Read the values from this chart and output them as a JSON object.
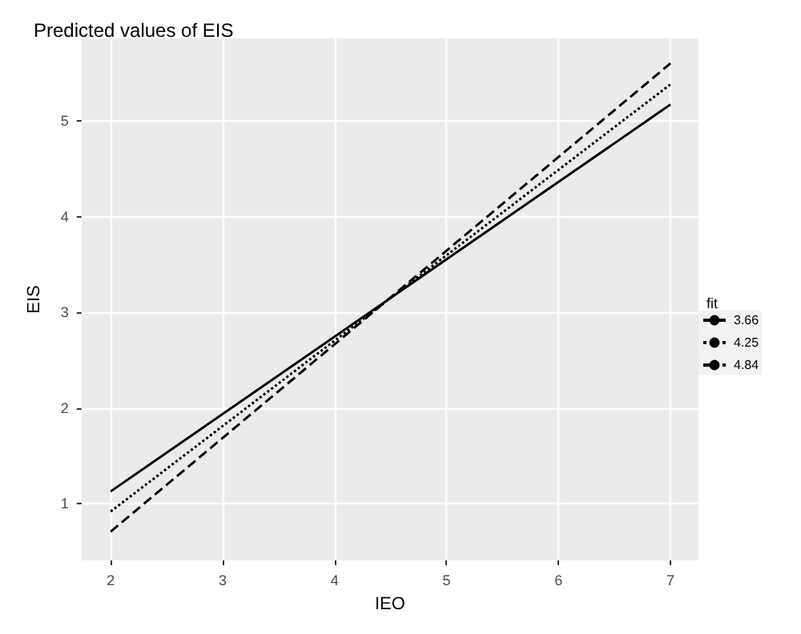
{
  "chart_data": {
    "type": "line",
    "title": "Predicted values of EIS",
    "xlabel": "IEO",
    "ylabel": "EIS",
    "legend_title": "fit",
    "x": [
      2,
      7
    ],
    "series": [
      {
        "name": "3.66",
        "color": "#000000",
        "line_style": "solid",
        "values": [
          1.13,
          5.17
        ]
      },
      {
        "name": "4.25",
        "color": "#000000",
        "line_style": "dotted",
        "values": [
          0.92,
          5.38
        ]
      },
      {
        "name": "4.84",
        "color": "#000000",
        "line_style": "dashed",
        "values": [
          0.71,
          5.6
        ]
      }
    ],
    "xlim": [
      1.74,
      7.25
    ],
    "ylim": [
      0.41,
      5.86
    ],
    "xticks": [
      2,
      3,
      4,
      5,
      6,
      7
    ],
    "yticks": [
      1,
      2,
      3,
      4,
      5
    ],
    "grid": true,
    "legend": "right",
    "marker": "none"
  }
}
